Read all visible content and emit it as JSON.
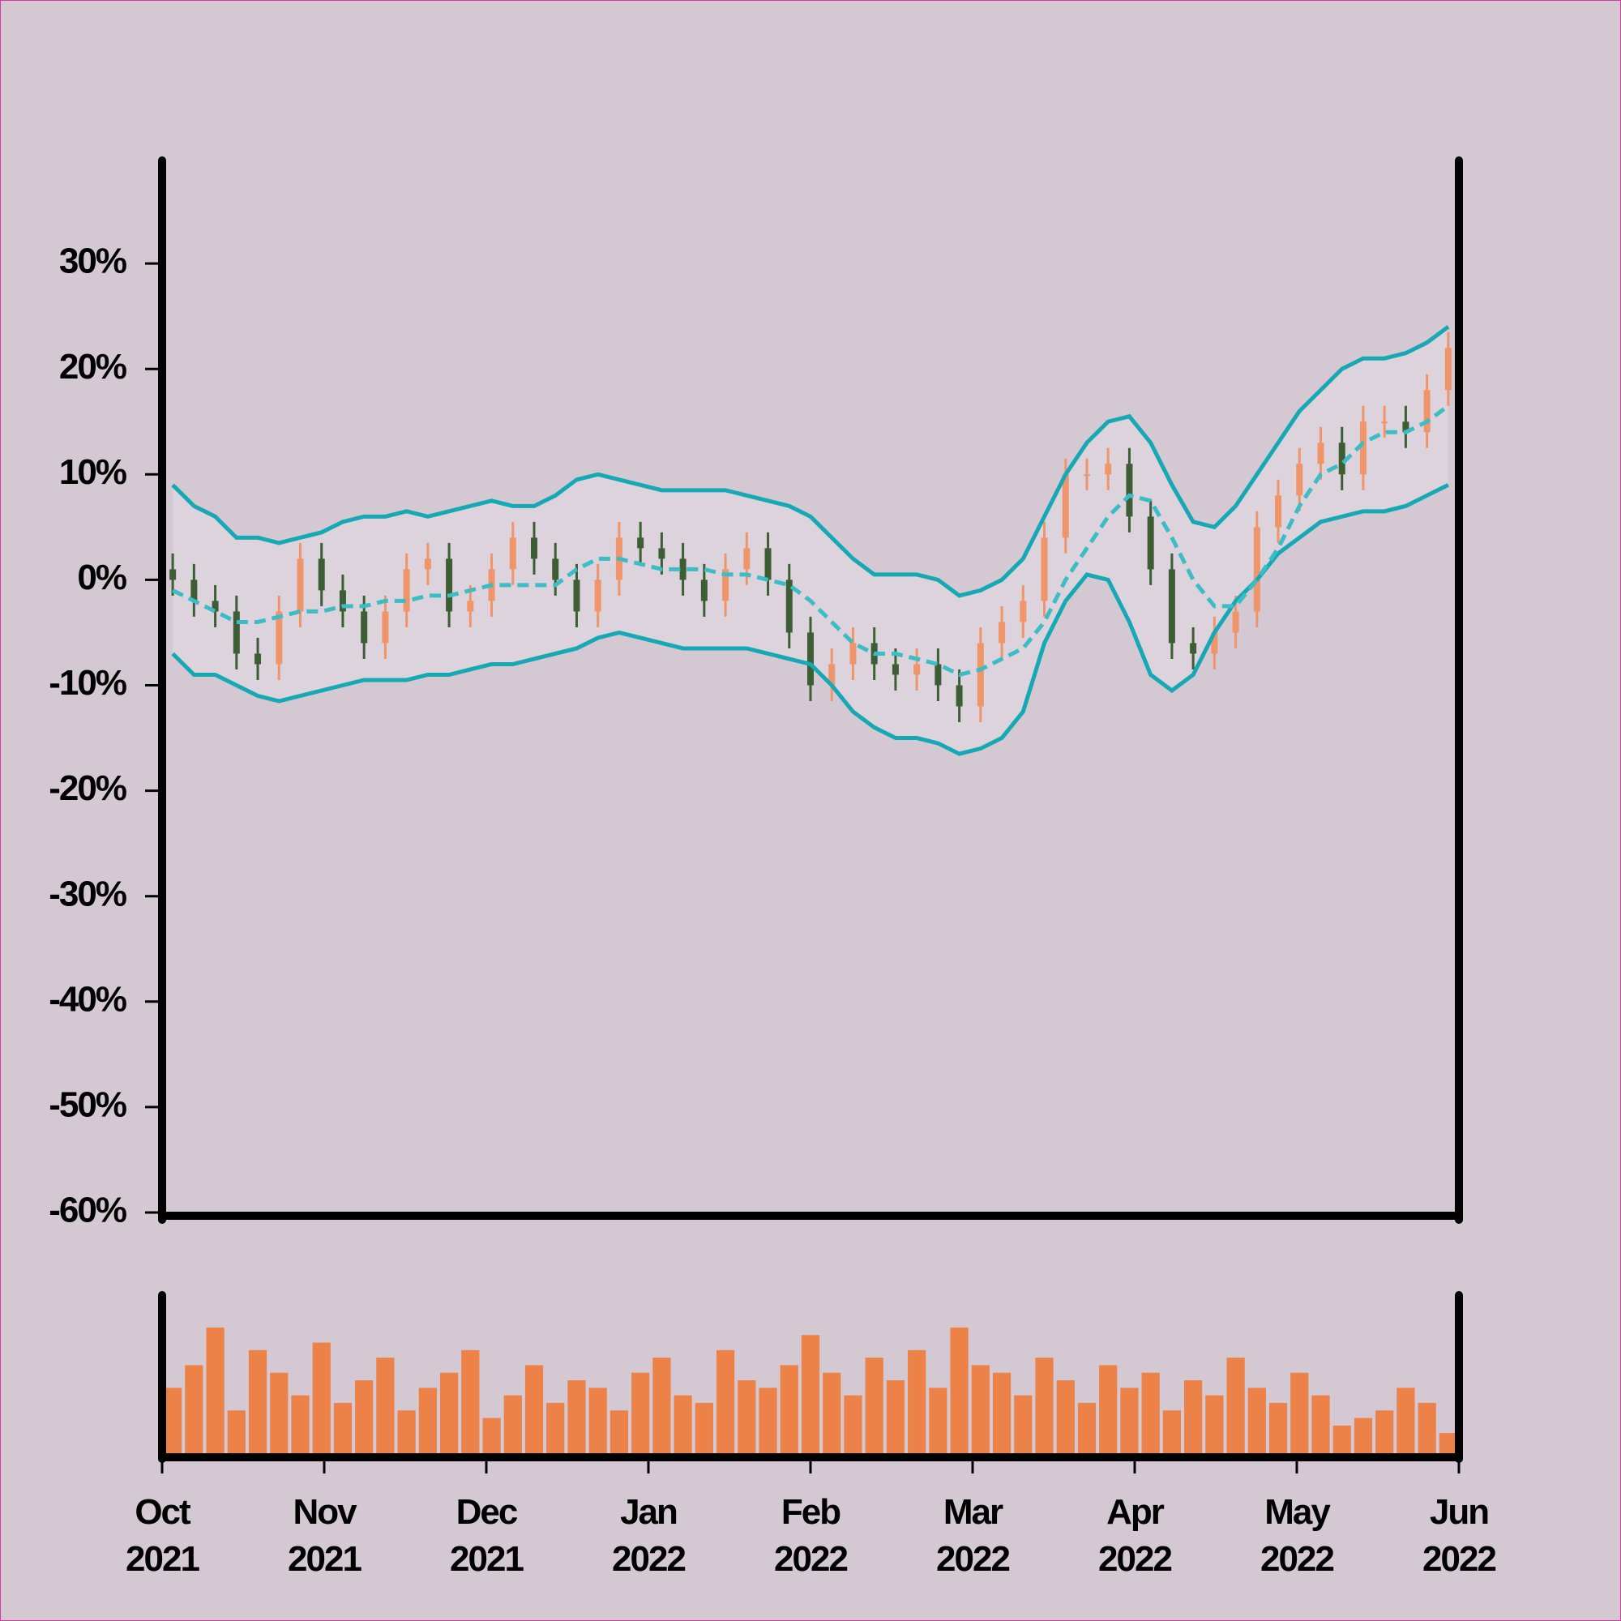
{
  "chart_data": [
    {
      "type": "ohlc",
      "open": [
        1,
        0,
        -2,
        -3,
        -7,
        -8,
        -3,
        2,
        -1,
        -3,
        -6,
        -3,
        1,
        2,
        -3,
        -2,
        1,
        4,
        2,
        0,
        -3,
        0,
        4,
        3,
        2,
        0,
        -2,
        1,
        3,
        0,
        -5,
        -10,
        -8,
        -6,
        -8,
        -9,
        -8,
        -10,
        -12,
        -6,
        -4,
        -2,
        4,
        10,
        10,
        11,
        6,
        1,
        -6,
        -7,
        -5,
        -3,
        5,
        8,
        11,
        13,
        10,
        15,
        15,
        14,
        18
      ],
      "high": [
        2.5,
        1.5,
        -0.5,
        -1.5,
        -5.5,
        -1.5,
        3.5,
        3.5,
        0.5,
        -1.5,
        -1.5,
        2.5,
        3.5,
        3.5,
        -0.5,
        2.5,
        5.5,
        5.5,
        3.5,
        1.5,
        1.5,
        5.5,
        5.5,
        4.5,
        3.5,
        1.5,
        2.5,
        4.5,
        4.5,
        1.5,
        -3.5,
        -6.5,
        -4.5,
        -4.5,
        -6.5,
        -6.5,
        -6.5,
        -8.5,
        -4.5,
        -2.5,
        -0.5,
        5.5,
        11.5,
        11.5,
        12.5,
        12.5,
        7.5,
        2.5,
        -4.5,
        -3.5,
        -1.5,
        6.5,
        9.5,
        12.5,
        14.5,
        14.5,
        16.5,
        16.5,
        16.5,
        19.5,
        23.5
      ],
      "low": [
        -1.5,
        -3.5,
        -4.5,
        -8.5,
        -9.5,
        -9.5,
        -4.5,
        -2.5,
        -4.5,
        -7.5,
        -7.5,
        -4.5,
        -0.5,
        -4.5,
        -4.5,
        -3.5,
        -0.5,
        0.5,
        -1.5,
        -4.5,
        -4.5,
        -1.5,
        1.5,
        0.5,
        -1.5,
        -3.5,
        -3.5,
        -0.5,
        -1.5,
        -6.5,
        -11.5,
        -11.5,
        -9.5,
        -9.5,
        -10.5,
        -10.5,
        -11.5,
        -13.5,
        -13.5,
        -7.5,
        -5.5,
        -3.5,
        2.5,
        8.5,
        8.5,
        4.5,
        -0.5,
        -7.5,
        -8.5,
        -8.5,
        -6.5,
        -4.5,
        3.5,
        6.5,
        9.5,
        8.5,
        8.5,
        13.5,
        12.5,
        12.5,
        16.5
      ],
      "close": [
        0,
        -2,
        -3,
        -7,
        -8,
        -3,
        2,
        -1,
        -3,
        -6,
        -3,
        1,
        2,
        -3,
        -2,
        1,
        4,
        2,
        0,
        -3,
        0,
        4,
        3,
        2,
        0,
        -2,
        1,
        3,
        0,
        -5,
        -10,
        -8,
        -6,
        -8,
        -9,
        -8,
        -10,
        -12,
        -6,
        -4,
        -2,
        4,
        10,
        10,
        11,
        6,
        1,
        -6,
        -7,
        -5,
        -3,
        5,
        8,
        11,
        13,
        10,
        15,
        15,
        14,
        18,
        22
      ],
      "up_color": "#f0956a",
      "down_color": "#3d5e35",
      "bands": {
        "upper": [
          9,
          7,
          6,
          4,
          4,
          3.5,
          4,
          4.5,
          5.5,
          6,
          6,
          6.5,
          6,
          6.5,
          7,
          7.5,
          7,
          7,
          8,
          9.5,
          10,
          9.5,
          9,
          8.5,
          8.5,
          8.5,
          8.5,
          8,
          7.5,
          7,
          6,
          4,
          2,
          0.5,
          0.5,
          0.5,
          0,
          -1.5,
          -1,
          0,
          2,
          6,
          10,
          13,
          15,
          15.5,
          13,
          9,
          5.5,
          5,
          7,
          10,
          13,
          16,
          18,
          20,
          21,
          21,
          21.5,
          22.5,
          24
        ],
        "middle": [
          -1,
          -2,
          -3,
          -4,
          -4,
          -3.5,
          -3,
          -3,
          -2.5,
          -2.5,
          -2,
          -2,
          -1.5,
          -1.5,
          -1,
          -0.5,
          -0.5,
          -0.5,
          -0.5,
          1,
          2,
          2,
          1.5,
          1,
          1,
          1,
          0.5,
          0.5,
          0,
          -0.5,
          -2,
          -4,
          -6,
          -7,
          -7,
          -7.5,
          -8,
          -9,
          -8.5,
          -7.5,
          -6.5,
          -4,
          0,
          3,
          6,
          8,
          7.5,
          4,
          0,
          -2.5,
          -2.5,
          0,
          3,
          7,
          10,
          11,
          13,
          14,
          14,
          15,
          16.5
        ],
        "lower": [
          -7,
          -9,
          -9,
          -10,
          -11,
          -11.5,
          -11,
          -10.5,
          -10,
          -9.5,
          -9.5,
          -9.5,
          -9,
          -9,
          -8.5,
          -8,
          -8,
          -7.5,
          -7,
          -6.5,
          -5.5,
          -5,
          -5.5,
          -6,
          -6.5,
          -6.5,
          -6.5,
          -6.5,
          -7,
          -7.5,
          -8,
          -10,
          -12.5,
          -14,
          -15,
          -15,
          -15.5,
          -16.5,
          -16,
          -15,
          -12.5,
          -6,
          -2,
          0.5,
          0,
          -4,
          -9,
          -10.5,
          -9,
          -5,
          -2,
          0,
          2.5,
          4,
          5.5,
          6,
          6.5,
          6.5,
          7,
          8,
          9
        ],
        "color": "#16a8b4",
        "middle_color": "#3cbcc4",
        "fill": "#dcd3dc"
      },
      "ylim": [
        -60,
        40
      ],
      "yticks": [
        {
          "value": -60,
          "label": "-60%"
        },
        {
          "value": -50,
          "label": "-50%"
        },
        {
          "value": -40,
          "label": "-40%"
        },
        {
          "value": -30,
          "label": "-30%"
        },
        {
          "value": -20,
          "label": "-20%"
        },
        {
          "value": -10,
          "label": "-10%"
        },
        {
          "value": 0,
          "label": "0%"
        },
        {
          "value": 10,
          "label": "10%"
        },
        {
          "value": 20,
          "label": "20%"
        },
        {
          "value": 30,
          "label": "30%"
        }
      ]
    },
    {
      "type": "bar",
      "values": [
        45,
        60,
        85,
        30,
        70,
        55,
        40,
        75,
        35,
        50,
        65,
        30,
        45,
        55,
        70,
        25,
        40,
        60,
        35,
        50,
        45,
        30,
        55,
        65,
        40,
        35,
        70,
        50,
        45,
        60,
        80,
        55,
        40,
        65,
        50,
        70,
        45,
        85,
        60,
        55,
        40,
        65,
        50,
        35,
        60,
        45,
        55,
        30,
        50,
        40,
        65,
        45,
        35,
        55,
        40,
        20,
        25,
        30,
        45,
        35,
        15
      ],
      "color": "#ec8248",
      "ylim": [
        0,
        100
      ],
      "xticks": [
        {
          "value": "2021-10",
          "label": "Oct 2021"
        },
        {
          "value": "2021-11",
          "label": "Nov 2021"
        },
        {
          "value": "2021-12",
          "label": "Dec 2021"
        },
        {
          "value": "2022-01",
          "label": "Jan 2022"
        },
        {
          "value": "2022-02",
          "label": "Feb 2022"
        },
        {
          "value": "2022-03",
          "label": "Mar 2022"
        },
        {
          "value": "2022-04",
          "label": "Apr 2022"
        },
        {
          "value": "2022-05",
          "label": "May 2022"
        },
        {
          "value": "2022-06",
          "label": "Jun 2022"
        }
      ]
    }
  ]
}
